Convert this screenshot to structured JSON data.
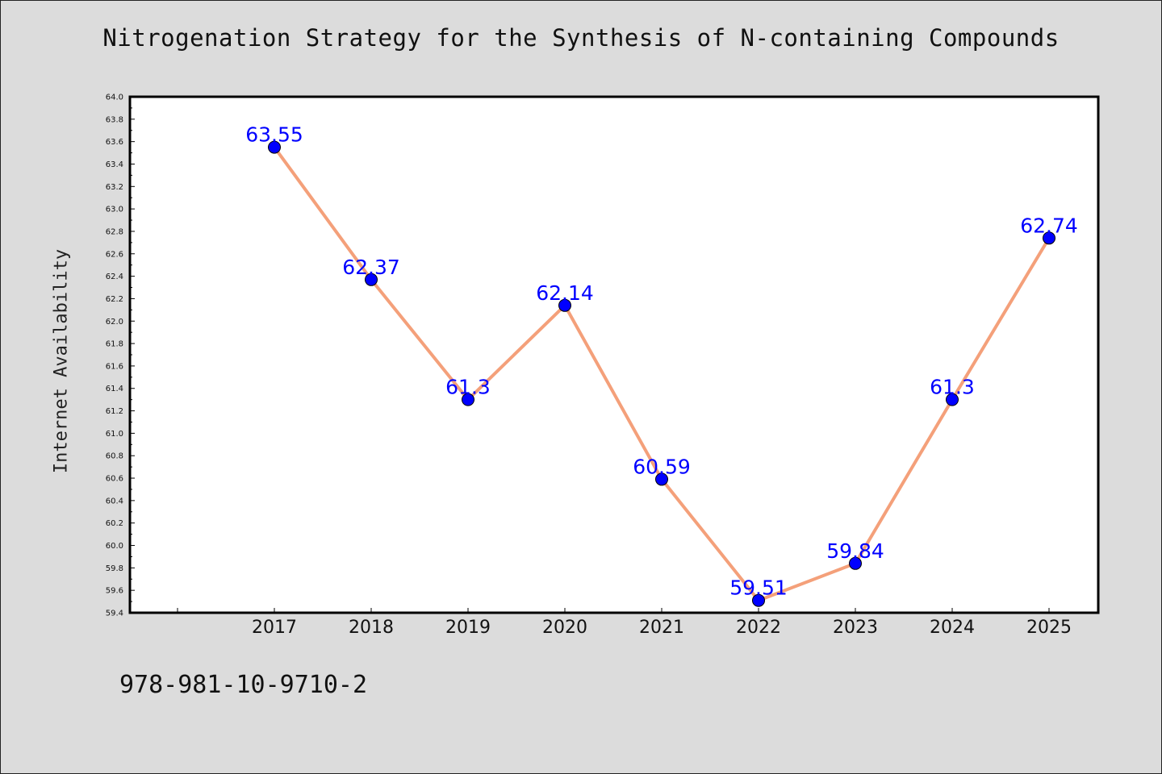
{
  "chart_data": {
    "type": "line",
    "title": "Nitrogenation Strategy for the Synthesis of N-containing Compounds",
    "xlabel": "",
    "ylabel": "Internet Availability",
    "categories": [
      "2017",
      "2018",
      "2019",
      "2020",
      "2021",
      "2022",
      "2023",
      "2024",
      "2025"
    ],
    "series": [
      {
        "values": [
          63.55,
          62.37,
          61.3,
          62.14,
          60.59,
          59.51,
          59.84,
          61.3,
          62.74
        ],
        "data_labels": [
          "63.55",
          "62.37",
          "61.3",
          "62.14",
          "60.59",
          "59.51",
          "59.84",
          "61.3",
          "62.74"
        ],
        "line_color": "#f4a07a",
        "marker_color": "#0000ff"
      }
    ],
    "ylim": [
      59.4,
      64.0
    ],
    "yticks": [
      "59.4",
      "59.6",
      "59.8",
      "60.0",
      "60.2",
      "60.4",
      "60.6",
      "60.8",
      "61.0",
      "61.2",
      "61.4",
      "61.6",
      "61.8",
      "62.0",
      "62.2",
      "62.4",
      "62.6",
      "62.8",
      "63.0",
      "63.2",
      "63.4",
      "63.6",
      "63.8",
      "64.0"
    ],
    "grid": false,
    "legend": "none"
  },
  "footer": {
    "identifier": "978-981-10-9710-2"
  },
  "colors": {
    "background": "#dcdcdc",
    "plot_area": "#ffffff",
    "line": "#f4a07a",
    "marker": "#0000ff",
    "data_label": "#0000ff"
  }
}
